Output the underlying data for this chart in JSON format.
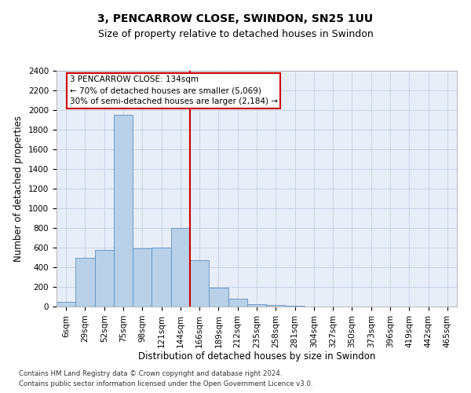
{
  "title": "3, PENCARROW CLOSE, SWINDON, SN25 1UU",
  "subtitle": "Size of property relative to detached houses in Swindon",
  "xlabel": "Distribution of detached houses by size in Swindon",
  "ylabel": "Number of detached properties",
  "categories": [
    "6sqm",
    "29sqm",
    "52sqm",
    "75sqm",
    "98sqm",
    "121sqm",
    "144sqm",
    "166sqm",
    "189sqm",
    "212sqm",
    "235sqm",
    "258sqm",
    "281sqm",
    "304sqm",
    "327sqm",
    "350sqm",
    "373sqm",
    "396sqm",
    "419sqm",
    "442sqm",
    "465sqm"
  ],
  "values": [
    50,
    500,
    580,
    1950,
    590,
    600,
    800,
    470,
    195,
    80,
    28,
    18,
    5,
    0,
    0,
    0,
    0,
    0,
    0,
    0,
    0
  ],
  "bar_color": "#b8d0e8",
  "bar_edge_color": "#6090c0",
  "grid_color": "#c8d4e4",
  "bg_color": "#e8eef8",
  "vline_color": "#cc0000",
  "vline_x_index": 6.5,
  "annotation_text": "3 PENCARROW CLOSE: 134sqm\n← 70% of detached houses are smaller (5,069)\n30% of semi-detached houses are larger (2,184) →",
  "annotation_box_color": "#ffffff",
  "annotation_box_edge_color": "#cc0000",
  "ylim": [
    0,
    2400
  ],
  "yticks": [
    0,
    200,
    400,
    600,
    800,
    1000,
    1200,
    1400,
    1600,
    1800,
    2000,
    2200,
    2400
  ],
  "footnote1": "Contains HM Land Registry data © Crown copyright and database right 2024.",
  "footnote2": "Contains public sector information licensed under the Open Government Licence v3.0.",
  "title_fontsize": 10,
  "subtitle_fontsize": 9,
  "xlabel_fontsize": 8.5,
  "ylabel_fontsize": 8.5,
  "tick_fontsize": 7.5,
  "annotation_fontsize": 7.5
}
